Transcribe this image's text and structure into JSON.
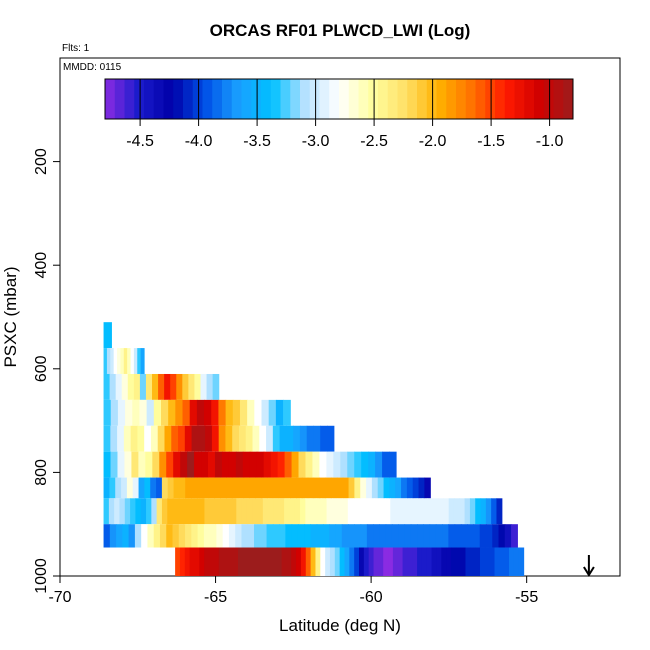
{
  "chart_data": {
    "type": "heatmap",
    "title": "ORCAS RF01 PLWCD_LWI (Log)",
    "flights_label": "Flts: 1",
    "date_label": "MMDD: 0115",
    "xlabel": "Latitude (deg N)",
    "ylabel": "PSXC (mbar)",
    "xlim": [
      -70,
      -52
    ],
    "ylim": [
      1000,
      0
    ],
    "xticks": [
      -70,
      -65,
      -60,
      -55
    ],
    "xtick_labels": [
      "-70",
      "-65",
      "-60",
      "-55"
    ],
    "yticks": [
      200,
      400,
      600,
      800,
      1000
    ],
    "ytick_labels": [
      "200",
      "400",
      "600",
      "800",
      "1000"
    ],
    "colorbar": {
      "range": [
        -4.8,
        -0.8
      ],
      "ticks": [
        -4.5,
        -4.0,
        -3.5,
        -3.0,
        -2.5,
        -2.0,
        -1.5,
        -1.0
      ],
      "tick_labels": [
        "-4.5",
        "-4.0",
        "-3.5",
        "-3.0",
        "-2.5",
        "-2.0",
        "-1.5",
        "-1.0"
      ],
      "colors": [
        "#8a2be2",
        "#1c1ccc",
        "#0000a8",
        "#0050e6",
        "#1aa0ff",
        "#00c0ff",
        "#b8e2ff",
        "#ffffff",
        "#ffffa0",
        "#ffe066",
        "#ffb000",
        "#ff7000",
        "#ff1a00",
        "#d00000",
        "#9c1c1c"
      ]
    },
    "marker": {
      "latitude": -53,
      "pressure": 1000,
      "symbol": "down-arrow"
    },
    "rows": [
      {
        "p_top": 510,
        "p_bot": 560,
        "lat_start": -68.6,
        "values": [
          -3.4
        ]
      },
      {
        "p_top": 560,
        "p_bot": 610,
        "lat_start": -68.6,
        "values": [
          -3.3,
          -3.1,
          -3.0,
          -2.8,
          -2.7,
          -2.6,
          -2.4,
          -2.6,
          -2.8,
          -3.0,
          -3.3,
          -3.6
        ]
      },
      {
        "p_top": 610,
        "p_bot": 660,
        "lat_start": -68.6,
        "values": [
          -3.3,
          -3.1,
          -2.9,
          -2.7,
          -2.5,
          -2.4,
          -3.2,
          -2.3,
          -2.0,
          -1.6,
          -1.3,
          -1.5,
          -1.8,
          -2.1,
          -2.3,
          -2.5,
          -2.9,
          -3.1,
          -3.2
        ]
      },
      {
        "p_top": 660,
        "p_bot": 710,
        "lat_start": -68.6,
        "values": [
          -3.3,
          -3.1,
          -2.9,
          -2.7,
          -2.6,
          -2.7,
          -3.0,
          -2.5,
          -2.2,
          -2.0,
          -1.8,
          -1.6,
          -1.2,
          -1.0,
          -1.1,
          -1.3,
          -1.7,
          -2.0,
          -2.1,
          -2.3,
          -2.6,
          -2.8,
          -3.0,
          -3.2,
          -3.5,
          -3.3
        ]
      },
      {
        "p_top": 710,
        "p_bot": 760,
        "lat_start": -68.6,
        "values": [
          -3.3,
          -3.1,
          -2.9,
          -2.6,
          -2.4,
          -2.5,
          -2.8,
          -2.6,
          -2.2,
          -1.9,
          -1.6,
          -1.5,
          -1.2,
          -0.9,
          -0.9,
          -1.0,
          -1.3,
          -1.8,
          -2.0,
          -2.2,
          -2.3,
          -2.4,
          -2.6,
          -2.8,
          -3.0,
          -3.3,
          -3.5,
          -3.5,
          -3.6,
          -3.7,
          -3.8,
          -3.8,
          -3.9,
          -3.9
        ]
      },
      {
        "p_top": 760,
        "p_bot": 810,
        "lat_start": -68.6,
        "values": [
          -3.4,
          -3.2,
          -2.9,
          -2.7,
          -2.3,
          -2.6,
          -2.5,
          -2.2,
          -1.8,
          -1.5,
          -1.2,
          -1.0,
          -0.8,
          -1.1,
          -1.1,
          -1.2,
          -1.0,
          -1.1,
          -1.1,
          -1.0,
          -1.1,
          -1.1,
          -1.1,
          -1.2,
          -1.3,
          -1.4,
          -1.6,
          -1.9,
          -2.2,
          -2.4,
          -2.6,
          -2.8,
          -2.9,
          -3.0,
          -3.1,
          -3.2,
          -3.3,
          -3.4,
          -3.5,
          -3.7,
          -3.9,
          -3.9
        ]
      },
      {
        "p_top": 810,
        "p_bot": 850,
        "lat_start": -68.6,
        "values": [
          -3.5,
          -3.3,
          -3.1,
          -3.0,
          -2.7,
          -2.9,
          -3.6,
          -3.4,
          -3.8,
          -3.9,
          -2.2,
          -2.1,
          -2.0,
          -2.0,
          -1.9,
          -1.9,
          -1.9,
          -1.9,
          -1.9,
          -1.9,
          -1.9,
          -1.9,
          -1.9,
          -1.9,
          -1.9,
          -1.9,
          -1.9,
          -1.9,
          -1.9,
          -1.9,
          -1.9,
          -1.9,
          -1.9,
          -1.9,
          -1.9,
          -1.9,
          -1.9,
          -1.9,
          -1.9,
          -1.9,
          -1.9,
          -1.9,
          -2.1,
          -2.4,
          -2.7,
          -2.9,
          -3.1,
          -3.2,
          -3.4,
          -3.5,
          -3.6,
          -3.8,
          -3.9,
          -4.0,
          -4.1,
          -4.3
        ]
      },
      {
        "p_top": 850,
        "p_bot": 900,
        "lat_start": -68.6,
        "values": [
          -3.3,
          -3.1,
          -3.0,
          -3.1,
          -3.2,
          -3.3,
          -3.4,
          -3.5,
          -3.3,
          -3.1,
          -2.3,
          -2.1,
          -2.0,
          -2.0,
          -2.0,
          -2.0,
          -2.0,
          -2.0,
          -2.0,
          -2.1,
          -2.1,
          -2.1,
          -2.1,
          -2.1,
          -2.1,
          -2.2,
          -2.2,
          -2.2,
          -2.2,
          -2.2,
          -2.3,
          -2.3,
          -2.3,
          -2.3,
          -2.4,
          -2.4,
          -2.4,
          -2.5,
          -2.6,
          -2.6,
          -2.6,
          -2.6,
          -2.7,
          -2.7,
          -2.7,
          -2.7,
          -2.8,
          -2.8,
          -2.8,
          -2.8,
          -2.8,
          -2.8,
          -2.8,
          -2.8,
          -2.9,
          -2.9,
          -2.9,
          -2.9,
          -2.9,
          -2.9,
          -2.9,
          -2.9,
          -2.9,
          -2.9,
          -2.9,
          -3.0,
          -3.0,
          -3.0,
          -3.1,
          -3.2,
          -3.4,
          -3.5,
          -3.7,
          -3.9,
          -4.1
        ]
      },
      {
        "p_top": 900,
        "p_bot": 945,
        "lat_start": -68.6,
        "values": [
          -3.9,
          -3.7,
          -3.6,
          -3.5,
          -3.7,
          -3.1,
          -2.8,
          -2.6,
          -2.4,
          -2.2,
          -2.0,
          -2.1,
          -2.2,
          -2.3,
          -2.4,
          -2.5,
          -2.6,
          -2.6,
          -2.7,
          -2.8,
          -2.9,
          -3.0,
          -3.1,
          -3.1,
          -3.2,
          -3.2,
          -3.3,
          -3.3,
          -3.3,
          -3.4,
          -3.4,
          -3.4,
          -3.4,
          -3.5,
          -3.5,
          -3.5,
          -3.6,
          -3.6,
          -3.7,
          -3.7,
          -3.7,
          -3.7,
          -3.8,
          -3.8,
          -3.8,
          -3.8,
          -3.8,
          -3.8,
          -3.8,
          -3.8,
          -3.8,
          -3.8,
          -3.8,
          -3.8,
          -3.8,
          -3.9,
          -3.9,
          -3.9,
          -3.9,
          -3.9,
          -4.0,
          -4.0,
          -4.1,
          -4.2,
          -4.4,
          -4.6
        ]
      },
      {
        "p_top": 945,
        "p_bot": 1000,
        "lat_start": -66.3,
        "values": [
          -1.5,
          -1.4,
          -1.3,
          -1.2,
          -1.2,
          -1.1,
          -1.0,
          -1.0,
          -1.0,
          -0.9,
          -0.9,
          -0.9,
          -0.9,
          -0.8,
          -0.8,
          -0.8,
          -0.8,
          -0.8,
          -0.8,
          -0.8,
          -0.8,
          -0.8,
          -0.9,
          -0.9,
          -1.0,
          -1.1,
          -1.3,
          -1.6,
          -2.0,
          -2.4,
          -2.8,
          -3.0,
          -3.1,
          -3.2,
          -3.4,
          -3.6,
          -3.8,
          -4.0,
          -4.3,
          -4.5,
          -4.6,
          -4.7,
          -4.7,
          -4.8,
          -4.8,
          -4.7,
          -4.7,
          -4.6,
          -4.6,
          -4.6,
          -4.5,
          -4.5,
          -4.5,
          -4.4,
          -4.4,
          -4.3,
          -4.3,
          -4.2,
          -4.2,
          -4.2,
          -4.1,
          -4.1,
          -4.1,
          -4.0,
          -4.0,
          -4.0,
          -3.9,
          -3.9,
          -3.9,
          -3.8,
          -3.8,
          -3.8
        ]
      }
    ],
    "row_ends": [
      -68.35,
      -67.3,
      -64.9,
      -62.6,
      -61.2,
      -59.2,
      -58.1,
      -55.8,
      -55.3,
      -55.1
    ]
  }
}
